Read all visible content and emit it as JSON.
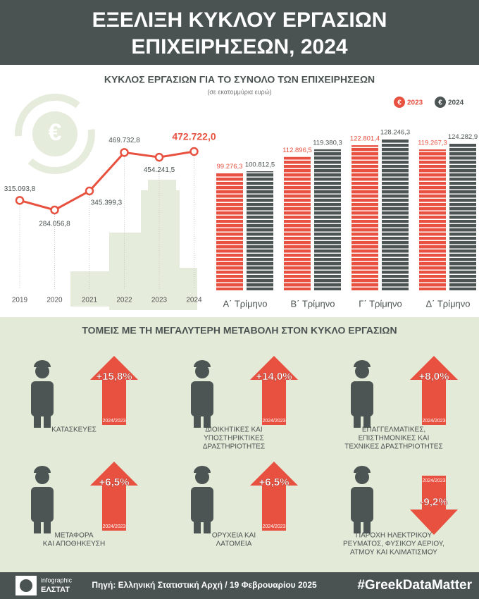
{
  "header": {
    "title": [
      "ΕΞΕΛΙΞΗ ΚΥΚΛΟΥ ΕΡΓΑΣΙΩΝ",
      "ΕΠΙΧΕΙΡΗΣΕΩΝ, 2024"
    ]
  },
  "overview": {
    "title": "ΚΥΚΛΟΣ ΕΡΓΑΣΙΩΝ ΓΙΑ ΤΟ ΣΥΝΟΛΟ ΤΩΝ ΕΠΙΧΕΙΡΗΣΕΩΝ",
    "subtitle": "(σε εκατομμύρια ευρώ)",
    "symbol": "€"
  },
  "chart_data": [
    {
      "type": "line",
      "color": "#e8503f",
      "categories": [
        "2019",
        "2020",
        "2021",
        "2022",
        "2023",
        "2024"
      ],
      "values": [
        315093.8,
        284056.8,
        345399.3,
        469732.8,
        454241.5,
        472722.0
      ],
      "value_labels": [
        "315.093,8",
        "284.056,8",
        "345.399,3",
        "469.732,8",
        "454.241,5",
        "472.722,0"
      ]
    },
    {
      "type": "bar",
      "categories": [
        "Α΄ Τρίμηνο",
        "Β΄ Τρίμηνο",
        "Γ΄ Τρίμηνο",
        "Δ΄ Τρίμηνο"
      ],
      "series": [
        {
          "name": "2023",
          "color": "#e8503f",
          "values": [
            99276.3,
            112896.5,
            122801.4,
            119267.3
          ],
          "value_labels": [
            "99.276,3",
            "112.896,5",
            "122.801,4",
            "119.267,3"
          ]
        },
        {
          "name": "2024",
          "color": "#4c5553",
          "values": [
            100812.5,
            119380.3,
            128246.3,
            124282.9
          ],
          "value_labels": [
            "100.812,5",
            "119.380,3",
            "128.246,3",
            "124.282,9"
          ]
        }
      ],
      "legend": "top-right"
    }
  ],
  "sectors_title": "ΤΟΜΕΙΣ ΜΕ ΤΗ ΜΕΓΑΛΥΤΕΡΗ ΜΕΤΑΒΟΛΗ ΣΤΟΝ ΚΥΚΛΟ ΕΡΓΑΣΙΩΝ",
  "sectors": [
    {
      "label": [
        "ΚΑΤΑΣΚΕΥΕΣ"
      ],
      "change": {
        "value": 15.8,
        "label": "+15,8%"
      },
      "period": "2024/2023"
    },
    {
      "label": [
        "ΔΙΟΙΚΗΤΙΚΕΣ ΚΑΙ",
        "ΥΠΟΣΤΗΡΙΚΤΙΚΕΣ",
        "ΔΡΑΣΤΗΡΙΟΤΗΤΕΣ"
      ],
      "change": {
        "value": 14.0,
        "label": "+14,0%"
      },
      "period": "2024/2023"
    },
    {
      "label": [
        "ΕΠΑΓΓΕΛΜΑΤΙΚΕΣ,",
        "ΕΠΙΣΤΗΜΟΝΙΚΕΣ ΚΑΙ",
        "ΤΕΧΝΙΚΕΣ ΔΡΑΣΤΗΡΙΟΤΗΤΕΣ"
      ],
      "change": {
        "value": 8.0,
        "label": "+8,0%"
      },
      "period": "2024/2023"
    },
    {
      "label": [
        "ΜΕΤΑΦΟΡΑ",
        "ΚΑΙ ΑΠΟΘΗΚΕΥΣΗ"
      ],
      "change": {
        "value": 6.5,
        "label": "+6,5%"
      },
      "period": "2024/2023"
    },
    {
      "label": [
        "ΟΡΥΧΕΙΑ ΚΑΙ",
        "ΛΑΤΟΜΕΙΑ"
      ],
      "change": {
        "value": 6.5,
        "label": "+6,5%"
      },
      "period": "2024/2023"
    },
    {
      "label": [
        "ΠΑΡΟΧΗ ΗΛΕΚΤΡΙΚΟΥ",
        "ΡΕΥΜΑΤΟΣ, ΦΥΣΙΚΟΥ ΑΕΡΙΟΥ,",
        "ΑΤΜΟΥ ΚΑΙ ΚΛΙΜΑΤΙΣΜΟΥ"
      ],
      "change": {
        "value": -9.2,
        "label": "-9,2%"
      },
      "period": "2024/2023"
    }
  ],
  "footer": {
    "logo": [
      "infographic",
      "ΕΛΣΤΑΤ"
    ],
    "source": "Πηγή: Ελληνική Στατιστική Αρχή / 19 Φεβρουαρίου 2025",
    "hashtag": "#GreekDataMatter"
  }
}
